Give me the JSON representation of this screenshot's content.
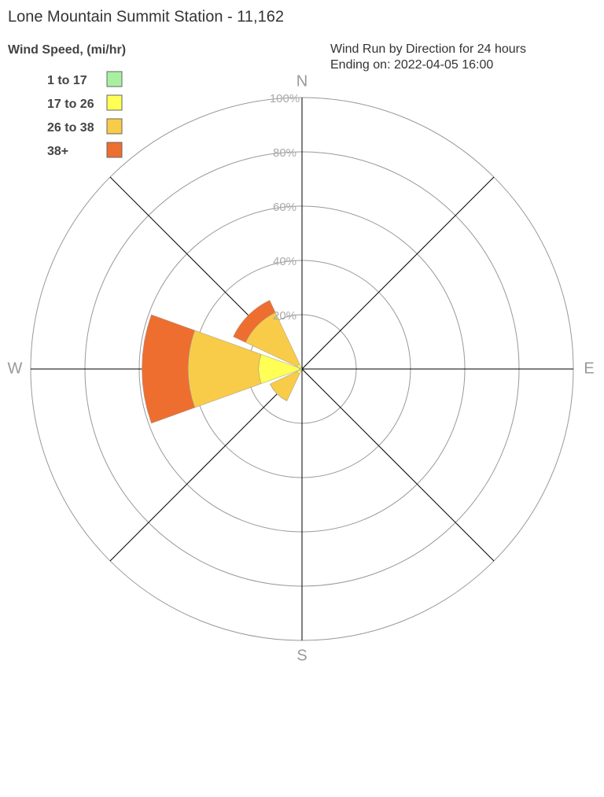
{
  "chart_data": {
    "type": "windrose",
    "title": "Lone Mountain Summit Station - 11,162",
    "legend_title": "Wind Speed, (mi/hr)",
    "subtitle": [
      "Wind Run by Direction for 24 hours",
      "Ending on: 2022-04-05 16:00"
    ],
    "categories": [
      "N",
      null,
      "E",
      null,
      "S",
      null,
      "W",
      null
    ],
    "series": [
      {
        "name": "1 to 17",
        "color": "#a8f0a0",
        "values": [
          0,
          0,
          0,
          0,
          0,
          0,
          1,
          0
        ]
      },
      {
        "name": "17 to 26",
        "color": "#ffff55",
        "values": [
          0,
          0,
          0,
          0,
          0,
          2,
          15,
          2
        ]
      },
      {
        "name": "26 to 38",
        "color": "#f8cc48",
        "values": [
          0,
          0,
          0,
          0,
          0,
          11,
          26,
          21
        ]
      },
      {
        "name": "38+",
        "color": "#ee6e30",
        "values": [
          0,
          0,
          0,
          0,
          0,
          0,
          17,
          5
        ]
      }
    ],
    "rlim": [
      0,
      100
    ],
    "rticks": [
      {
        "value": 20,
        "label": "20%"
      },
      {
        "value": 40,
        "label": "40%"
      },
      {
        "value": 60,
        "label": "60%"
      },
      {
        "value": 80,
        "label": "80%"
      },
      {
        "value": 100,
        "label": "100%"
      }
    ],
    "grid": true
  }
}
